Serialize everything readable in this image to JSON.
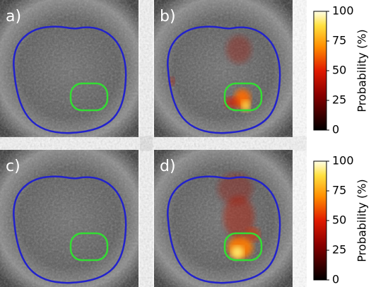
{
  "panels": [
    {
      "label": "a)"
    },
    {
      "label": "b)"
    },
    {
      "label": "c)"
    },
    {
      "label": "d)"
    }
  ],
  "colorbars": [
    {
      "label": "Probability (%)",
      "lim": [
        0,
        100
      ],
      "ticks": [
        0,
        25,
        50,
        75,
        100
      ]
    },
    {
      "label": "Probability (%)",
      "lim": [
        0,
        100
      ],
      "ticks": [
        0,
        25,
        50,
        75,
        100
      ]
    }
  ]
}
